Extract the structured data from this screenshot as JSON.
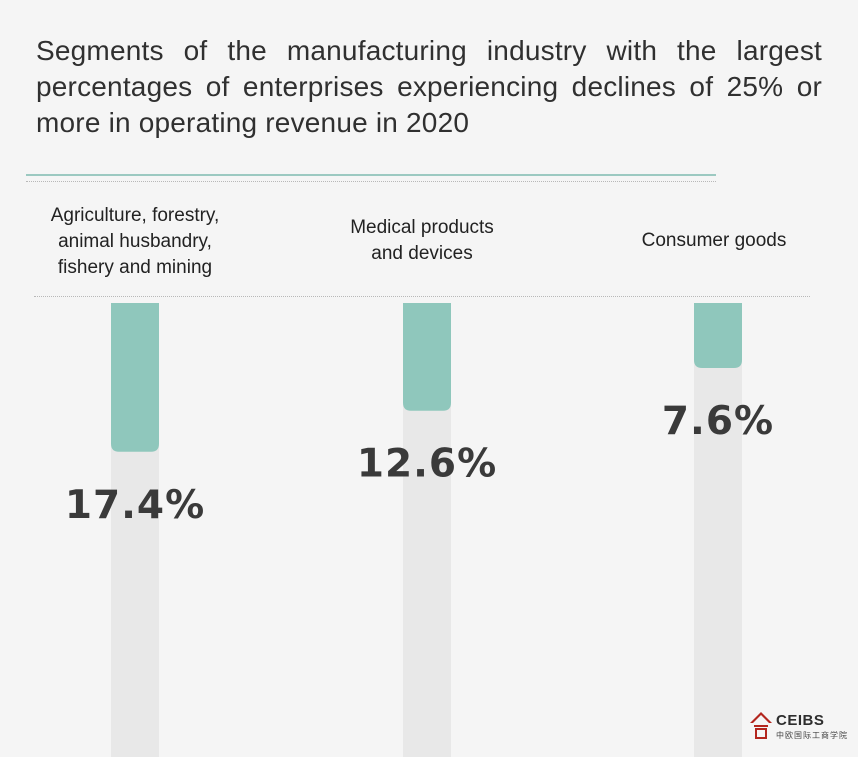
{
  "chart_data": {
    "type": "bar",
    "title": "Segments of the manufacturing industry with the largest percentages of enterprises experiencing declines of 25% or more in operating revenue in 2020",
    "categories": [
      "Agriculture, forestry,\nanimal husbandry,\nfishery and mining",
      "Medical products\nand devices",
      "Consumer goods"
    ],
    "values": [
      17.4,
      12.6,
      7.6
    ],
    "value_labels": [
      "17.4%",
      "12.6%",
      "7.6%"
    ],
    "unit": "%",
    "ylim": [
      0,
      100
    ],
    "orientation": "vertical-downward",
    "grid": false,
    "legend": "none",
    "colors": {
      "bar_fill": "#8fc7bc",
      "track_fill": "#e8e8e8",
      "accent_rule": "#9cc9c1"
    }
  },
  "logo": {
    "text": "CEIBS",
    "sub": "中欧国际工商学院"
  }
}
